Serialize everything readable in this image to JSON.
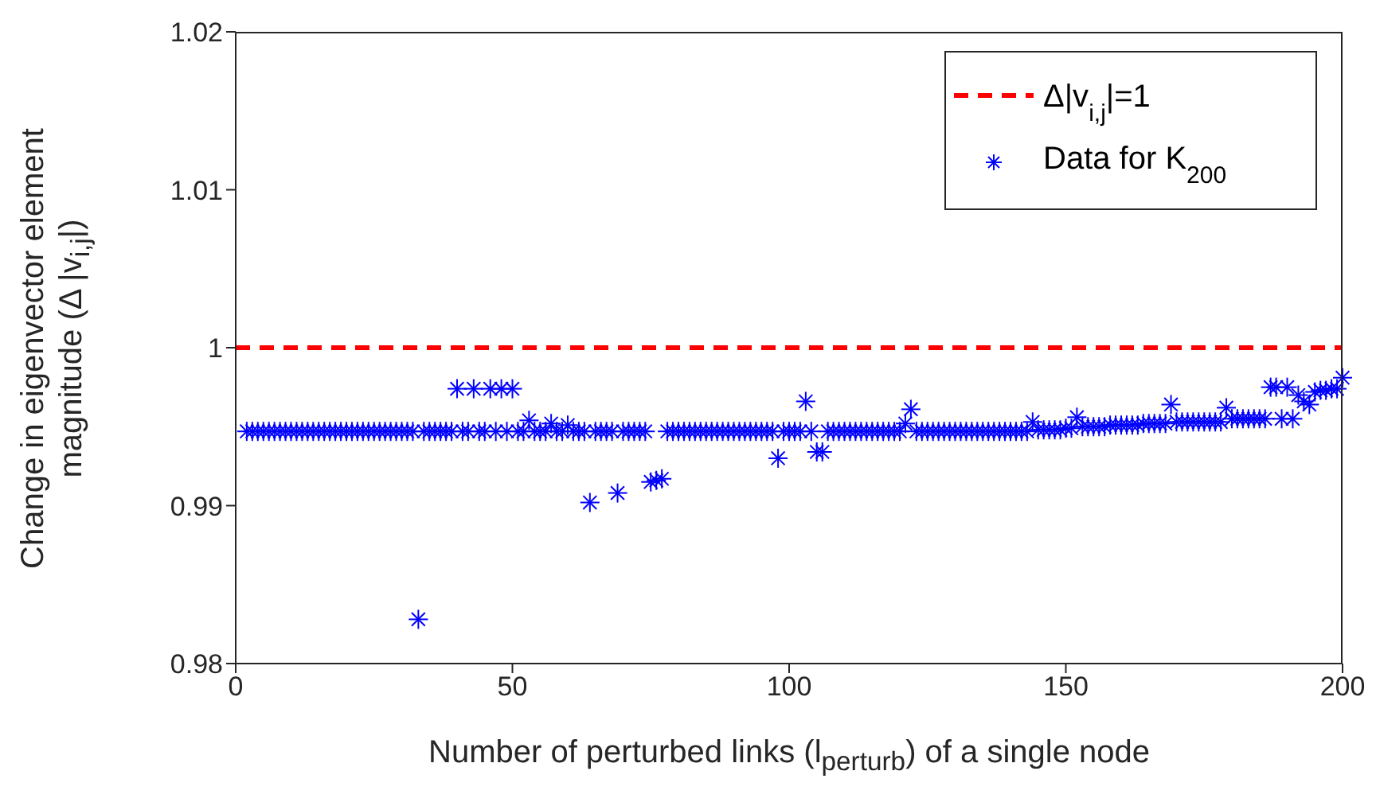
{
  "chart_data": {
    "type": "scatter",
    "xlabel": "Number of perturbed links (l$_{perturb}$) of a single node",
    "ylabel": "Change in eigenvector element magnitude (Δ |v$_{i,j}$|)",
    "x": [
      2,
      3,
      4,
      5,
      6,
      7,
      8,
      9,
      10,
      11,
      12,
      13,
      14,
      15,
      16,
      17,
      18,
      19,
      20,
      21,
      22,
      23,
      24,
      25,
      26,
      27,
      28,
      29,
      30,
      31,
      32,
      33,
      34,
      35,
      36,
      37,
      38,
      39,
      40,
      41,
      42,
      43,
      44,
      45,
      46,
      47,
      48,
      49,
      50,
      51,
      52,
      53,
      54,
      55,
      56,
      57,
      58,
      59,
      60,
      61,
      62,
      63,
      64,
      65,
      66,
      67,
      68,
      69,
      70,
      71,
      72,
      73,
      74,
      75,
      76,
      77,
      78,
      79,
      80,
      81,
      82,
      83,
      84,
      85,
      86,
      87,
      88,
      89,
      90,
      91,
      92,
      93,
      94,
      95,
      96,
      97,
      98,
      99,
      100,
      101,
      102,
      103,
      104,
      105,
      106,
      107,
      108,
      109,
      110,
      111,
      112,
      113,
      114,
      115,
      116,
      117,
      118,
      119,
      120,
      121,
      122,
      123,
      124,
      125,
      126,
      127,
      128,
      129,
      130,
      131,
      132,
      133,
      134,
      135,
      136,
      137,
      138,
      139,
      140,
      141,
      142,
      143,
      144,
      145,
      146,
      147,
      148,
      149,
      150,
      151,
      152,
      153,
      154,
      155,
      156,
      157,
      158,
      159,
      160,
      161,
      162,
      163,
      164,
      165,
      166,
      167,
      168,
      169,
      170,
      171,
      172,
      173,
      174,
      175,
      176,
      177,
      178,
      179,
      180,
      181,
      182,
      183,
      184,
      185,
      186,
      187,
      188,
      189,
      190,
      191,
      192,
      193,
      194,
      195,
      196,
      197,
      198,
      199,
      200
    ],
    "series": [
      {
        "name": "Data for K$_{200}$",
        "color": "#0000ff",
        "values": [
          0.9947,
          0.9947,
          0.9947,
          0.9947,
          0.9947,
          0.9947,
          0.9947,
          0.9947,
          0.9947,
          0.9947,
          0.9947,
          0.9947,
          0.9947,
          0.9947,
          0.9947,
          0.9947,
          0.9947,
          0.9947,
          0.9947,
          0.9947,
          0.9947,
          0.9947,
          0.9947,
          0.9947,
          0.9947,
          0.9947,
          0.9947,
          0.9947,
          0.9947,
          0.9947,
          0.9947,
          0.9828,
          0.9947,
          0.9947,
          0.9947,
          0.9947,
          0.9947,
          0.9947,
          0.9974,
          0.9947,
          0.9947,
          0.9974,
          0.9947,
          0.9947,
          0.9974,
          0.9947,
          0.9974,
          0.9947,
          0.9974,
          0.9947,
          0.9947,
          0.9954,
          0.9947,
          0.9947,
          0.9947,
          0.9952,
          0.9947,
          0.9947,
          0.9951,
          0.9947,
          0.9947,
          0.9947,
          0.9902,
          0.9947,
          0.9947,
          0.9947,
          0.9947,
          0.9908,
          0.9947,
          0.9947,
          0.9947,
          0.9947,
          0.9947,
          0.9915,
          0.9916,
          0.9917,
          0.9947,
          0.9947,
          0.9947,
          0.9947,
          0.9947,
          0.9947,
          0.9947,
          0.9947,
          0.9947,
          0.9947,
          0.9947,
          0.9947,
          0.9947,
          0.9947,
          0.9947,
          0.9947,
          0.9947,
          0.9947,
          0.9947,
          0.9947,
          0.993,
          0.9947,
          0.9947,
          0.9947,
          0.9947,
          0.9966,
          0.9947,
          0.9934,
          0.9934,
          0.9947,
          0.9947,
          0.9947,
          0.9947,
          0.9947,
          0.9947,
          0.9947,
          0.9947,
          0.9947,
          0.9947,
          0.9947,
          0.9947,
          0.9947,
          0.9947,
          0.9952,
          0.9961,
          0.9947,
          0.9947,
          0.9947,
          0.9947,
          0.9947,
          0.9947,
          0.9947,
          0.9947,
          0.9947,
          0.9947,
          0.9947,
          0.9947,
          0.9947,
          0.9947,
          0.9947,
          0.9947,
          0.9947,
          0.9947,
          0.9947,
          0.9947,
          0.9947,
          0.9953,
          0.9948,
          0.9948,
          0.9948,
          0.9948,
          0.9948,
          0.9949,
          0.9949,
          0.9956,
          0.995,
          0.995,
          0.995,
          0.995,
          0.995,
          0.9951,
          0.9951,
          0.9951,
          0.9951,
          0.9951,
          0.9951,
          0.9952,
          0.9952,
          0.9952,
          0.9952,
          0.9952,
          0.9964,
          0.9953,
          0.9953,
          0.9953,
          0.9953,
          0.9953,
          0.9953,
          0.9953,
          0.9953,
          0.9953,
          0.9962,
          0.9955,
          0.9955,
          0.9955,
          0.9955,
          0.9955,
          0.9955,
          0.9955,
          0.9975,
          0.9975,
          0.9955,
          0.9975,
          0.9955,
          0.997,
          0.9966,
          0.9964,
          0.9972,
          0.9973,
          0.9973,
          0.9974,
          0.9974,
          0.9981
        ]
      }
    ],
    "ref_lines": [
      {
        "axis": "y",
        "value": 1,
        "label": "Δ|v$_{i,j}$|=1",
        "color": "#ff0000",
        "line_style": "dashed"
      }
    ],
    "xlim": [
      0,
      200
    ],
    "xticks": [
      0,
      50,
      100,
      150,
      200
    ],
    "ylim": [
      0.98,
      1.02
    ],
    "yticks": [
      0.98,
      0.99,
      1,
      1.01,
      1.02
    ],
    "marker": "cross",
    "legend": "top right"
  }
}
